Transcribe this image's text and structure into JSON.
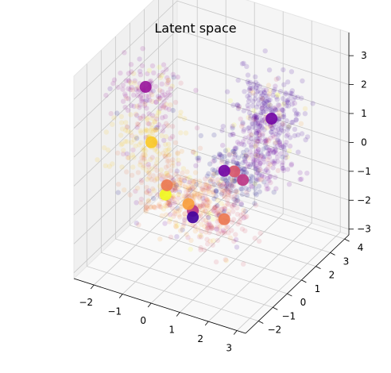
{
  "chart_data": {
    "type": "scatter",
    "title": "Latent space",
    "xlabel": "",
    "ylabel": "",
    "zlabel": "",
    "xlim": [
      -2.7,
      3.3
    ],
    "ylim": [
      -2.9,
      4.3
    ],
    "zlim": [
      -3.2,
      3.8
    ],
    "xticks": [
      -2,
      -1,
      0,
      1,
      2,
      3
    ],
    "yticks": [
      -2,
      -1,
      0,
      1,
      2,
      3,
      4
    ],
    "zticks": [
      -3,
      -2,
      -1,
      0,
      1,
      2,
      3
    ],
    "grid": true,
    "colormap": "plasma",
    "background_points": {
      "count": 1400,
      "opacity": 0.15,
      "clusters": [
        {
          "center": [
            1.2,
            3.1,
            1.0
          ],
          "spread": 0.55,
          "weight": 0.2,
          "class": 1
        },
        {
          "center": [
            1.0,
            3.0,
            -0.6
          ],
          "spread": 0.5,
          "weight": 0.12,
          "class": 2
        },
        {
          "center": [
            -1.8,
            0.3,
            2.0
          ],
          "spread": 0.5,
          "weight": 0.1,
          "class": 3
        },
        {
          "center": [
            -1.5,
            0.0,
            0.6
          ],
          "spread": 0.55,
          "weight": 0.1,
          "class": 8
        },
        {
          "center": [
            -0.8,
            -0.5,
            -0.5
          ],
          "spread": 0.55,
          "weight": 0.1,
          "class": 6
        },
        {
          "center": [
            -0.2,
            0.1,
            -1.2
          ],
          "spread": 0.5,
          "weight": 0.12,
          "class": 7
        },
        {
          "center": [
            0.5,
            0.6,
            -1.5
          ],
          "spread": 0.55,
          "weight": 0.14,
          "class": 5
        },
        {
          "center": [
            0.7,
            1.4,
            -0.6
          ],
          "spread": 0.5,
          "weight": 0.12,
          "class": 0
        }
      ]
    },
    "class_centers": [
      {
        "x": -1.8,
        "y": 0.3,
        "z": 2.2,
        "class": 3
      },
      {
        "x": -1.4,
        "y": -0.1,
        "z": 0.6,
        "class": 8
      },
      {
        "x": -0.6,
        "y": -0.6,
        "z": -0.4,
        "class": 6
      },
      {
        "x": -0.7,
        "y": -0.5,
        "z": -0.8,
        "class": 9
      },
      {
        "x": 0.0,
        "y": -0.3,
        "z": -1.0,
        "class": 7
      },
      {
        "x": -0.1,
        "y": 0.2,
        "z": -1.5,
        "class": 4
      },
      {
        "x": 0.0,
        "y": 0.0,
        "z": -1.6,
        "class": 1
      },
      {
        "x": 0.8,
        "y": 0.6,
        "z": -1.7,
        "class": 6
      },
      {
        "x": 0.7,
        "y": 1.5,
        "z": -0.5,
        "class": 5
      },
      {
        "x": 0.5,
        "y": 1.2,
        "z": -0.4,
        "class": 2
      },
      {
        "x": 1.0,
        "y": 1.5,
        "z": -0.7,
        "class": 4
      },
      {
        "x": 1.1,
        "y": 3.3,
        "z": 0.6,
        "class": 2
      }
    ]
  }
}
